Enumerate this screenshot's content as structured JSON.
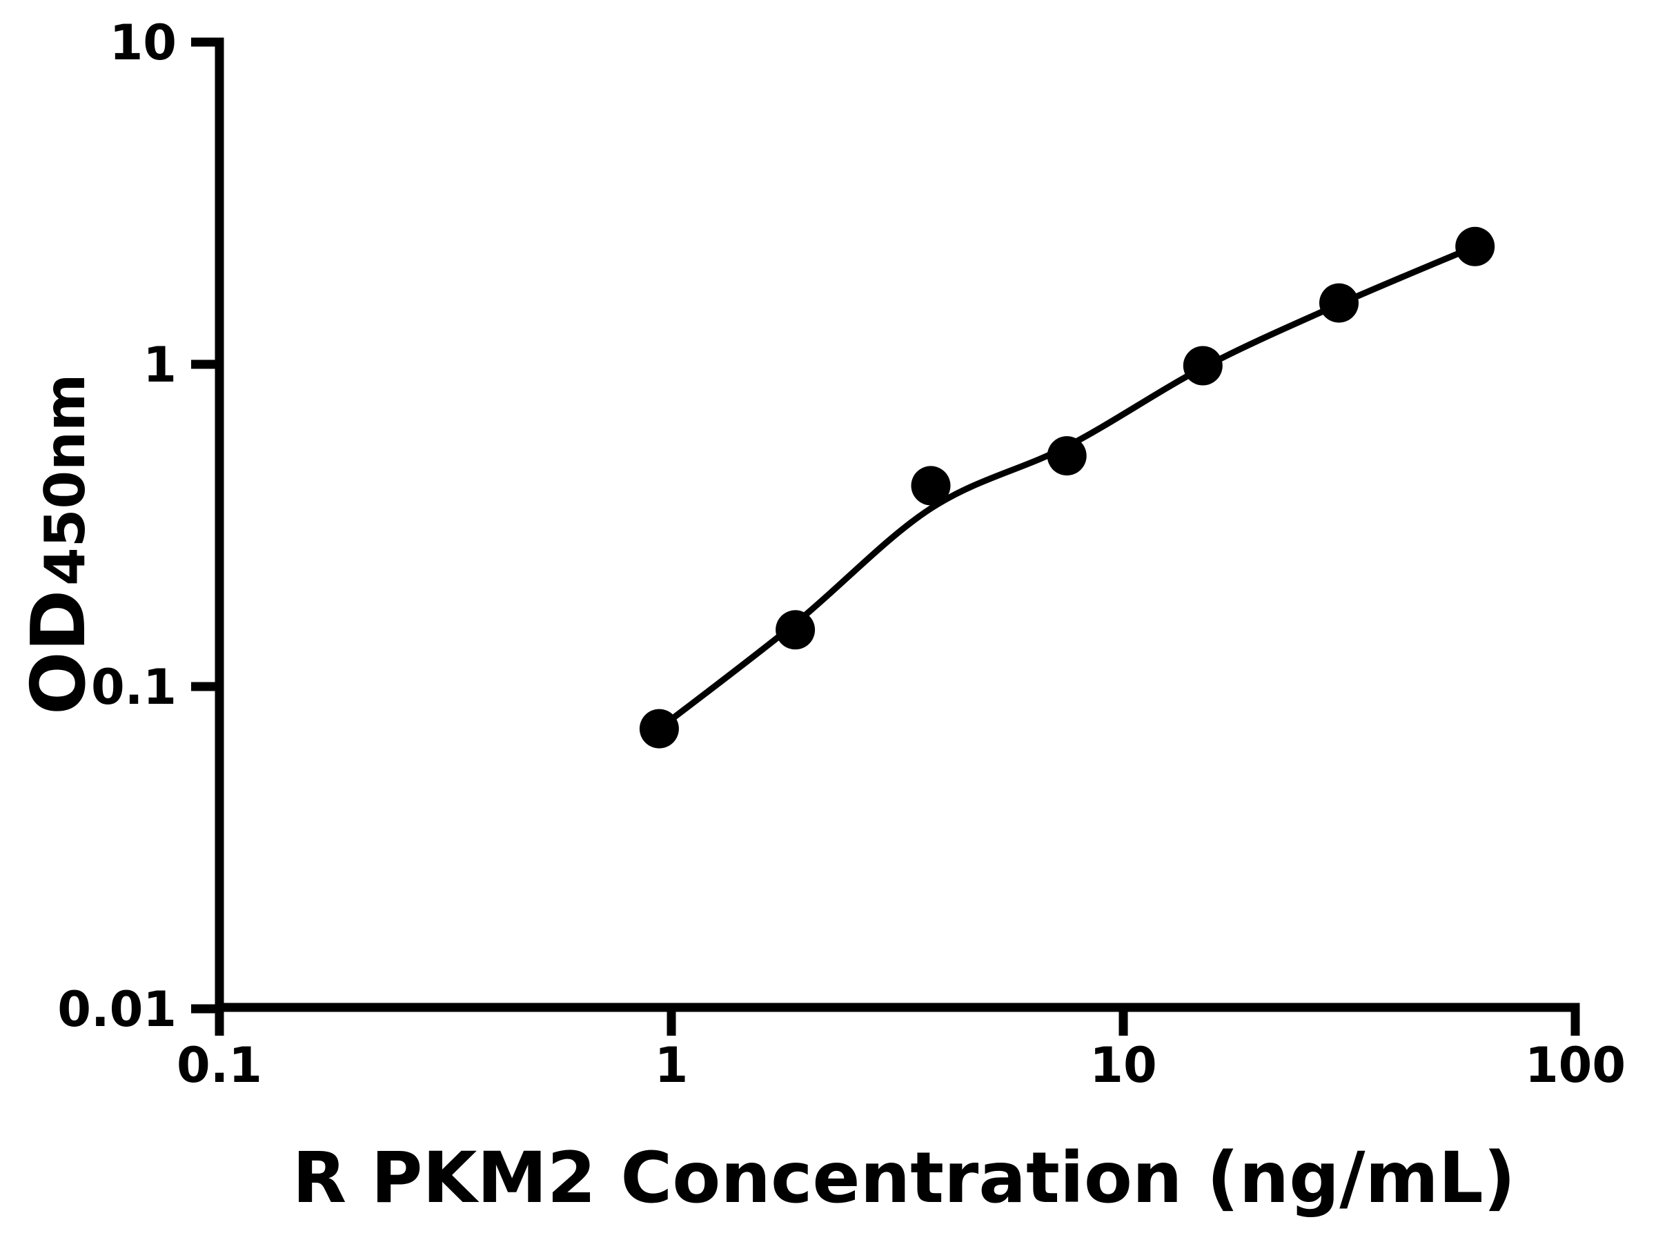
{
  "figure": {
    "background_color": "#ffffff",
    "axis_color": "#000000",
    "marker_color": "#000000",
    "curve_color": "#000000"
  },
  "x_axis": {
    "title": "R PKM2 Concentration (ng/mL)",
    "scale": "log",
    "ticks": [
      {
        "value": 0.1,
        "label": "0.1"
      },
      {
        "value": 1,
        "label": "1"
      },
      {
        "value": 10,
        "label": "10"
      },
      {
        "value": 100,
        "label": "100"
      }
    ]
  },
  "y_axis": {
    "title_main": "OD",
    "title_sub": "450nm",
    "scale": "log",
    "ticks": [
      {
        "value": 10,
        "label": "10"
      },
      {
        "value": 1,
        "label": "1"
      },
      {
        "value": 0.1,
        "label": "0.1"
      },
      {
        "value": 0.01,
        "label": "0.01"
      }
    ]
  },
  "chart_data": {
    "type": "scatter",
    "title": "",
    "xlabel": "R PKM2 Concentration (ng/mL)",
    "ylabel": "OD450nm",
    "x_scale": "log",
    "y_scale": "log",
    "xlim": [
      0.1,
      100
    ],
    "ylim": [
      0.01,
      10
    ],
    "grid": false,
    "legend": "none",
    "series": [
      {
        "name": "standard-points",
        "type": "scatter",
        "x": [
          0.94,
          1.88,
          3.75,
          7.5,
          15,
          30,
          60
        ],
        "y": [
          0.074,
          0.15,
          0.42,
          0.52,
          0.99,
          1.55,
          2.32
        ]
      },
      {
        "name": "fit-curve",
        "type": "line",
        "x": [
          0.94,
          1.88,
          3.75,
          7.5,
          15,
          30,
          60
        ],
        "y": [
          0.074,
          0.157,
          0.357,
          0.556,
          0.976,
          1.536,
          2.32
        ]
      }
    ]
  }
}
